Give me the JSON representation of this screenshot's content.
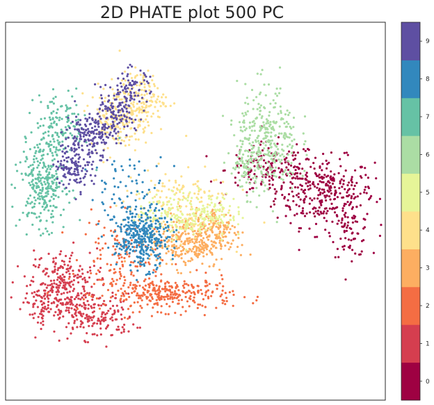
{
  "chart_data": {
    "type": "scatter",
    "title": "2D PHATE plot 500 PC",
    "xlabel": "",
    "ylabel": "",
    "xlim": [
      0,
      100
    ],
    "ylim": [
      0,
      100
    ],
    "grid": false,
    "axis_ticks": false,
    "colorbar": {
      "labels": [
        "0",
        "1",
        "2",
        "3",
        "4",
        "5",
        "6",
        "7",
        "8",
        "9"
      ],
      "colors": [
        "#9e0142",
        "#d53e4f",
        "#f46d43",
        "#fdae61",
        "#fee08b",
        "#e6f598",
        "#abdda4",
        "#66c2a5",
        "#3288bd",
        "#5e4fa2"
      ]
    },
    "series": [
      {
        "label": "0",
        "color": "#9e0142",
        "clusters": [
          {
            "cx": 84,
            "cy": 55,
            "sx": 6.5,
            "sy": 4.5,
            "n": 320
          },
          {
            "cx": 70,
            "cy": 61,
            "sx": 6,
            "sy": 3.5,
            "n": 160
          },
          {
            "cx": 91,
            "cy": 44,
            "sx": 2.5,
            "sy": 3,
            "n": 60
          }
        ]
      },
      {
        "label": "1",
        "color": "#d53e4f",
        "clusters": [
          {
            "cx": 15,
            "cy": 30,
            "sx": 4.5,
            "sy": 5,
            "n": 260
          },
          {
            "cx": 24,
            "cy": 22,
            "sx": 5,
            "sy": 3,
            "n": 160
          },
          {
            "cx": 9,
            "cy": 26,
            "sx": 2.5,
            "sy": 3,
            "n": 60
          }
        ]
      },
      {
        "label": "2",
        "color": "#f46d43",
        "clusters": [
          {
            "cx": 43,
            "cy": 28,
            "sx": 8.5,
            "sy": 2.2,
            "n": 300
          },
          {
            "cx": 30,
            "cy": 38,
            "sx": 5,
            "sy": 5,
            "n": 120
          }
        ]
      },
      {
        "label": "3",
        "color": "#fdae61",
        "clusters": [
          {
            "cx": 48,
            "cy": 42,
            "sx": 5,
            "sy": 3.5,
            "n": 300
          },
          {
            "cx": 56,
            "cy": 45,
            "sx": 3,
            "sy": 3,
            "n": 100
          }
        ]
      },
      {
        "label": "4",
        "color": "#fee08b",
        "clusters": [
          {
            "cx": 30,
            "cy": 75,
            "sx": 4,
            "sy": 4,
            "n": 200
          },
          {
            "cx": 36,
            "cy": 80,
            "sx": 3,
            "sy": 3.5,
            "n": 120
          },
          {
            "cx": 45,
            "cy": 52,
            "sx": 7,
            "sy": 5,
            "n": 150
          }
        ]
      },
      {
        "label": "5",
        "color": "#e6f598",
        "clusters": [
          {
            "cx": 47,
            "cy": 49,
            "sx": 6,
            "sy": 3,
            "n": 180
          },
          {
            "cx": 55,
            "cy": 50,
            "sx": 3,
            "sy": 2.5,
            "n": 60
          }
        ]
      },
      {
        "label": "6",
        "color": "#abdda4",
        "clusters": [
          {
            "cx": 69,
            "cy": 69,
            "sx": 4,
            "sy": 7,
            "n": 300
          },
          {
            "cx": 64,
            "cy": 62,
            "sx": 3,
            "sy": 4,
            "n": 80
          }
        ]
      },
      {
        "label": "7",
        "color": "#66c2a5",
        "clusters": [
          {
            "cx": 10,
            "cy": 58,
            "sx": 3,
            "sy": 6,
            "n": 300
          },
          {
            "cx": 15,
            "cy": 73,
            "sx": 3.5,
            "sy": 4,
            "n": 120
          }
        ]
      },
      {
        "label": "8",
        "color": "#3288bd",
        "clusters": [
          {
            "cx": 36,
            "cy": 43,
            "sx": 3.5,
            "sy": 4,
            "n": 350
          },
          {
            "cx": 32,
            "cy": 55,
            "sx": 5,
            "sy": 5,
            "n": 70
          }
        ]
      },
      {
        "label": "9",
        "color": "#5e4fa2",
        "clusters": [
          {
            "cx": 18,
            "cy": 62,
            "sx": 2.5,
            "sy": 3,
            "n": 120
          },
          {
            "cx": 22,
            "cy": 70,
            "sx": 3,
            "sy": 3,
            "n": 160
          },
          {
            "cx": 28,
            "cy": 75,
            "sx": 3,
            "sy": 3,
            "n": 120
          },
          {
            "cx": 33,
            "cy": 82,
            "sx": 2.5,
            "sy": 3,
            "n": 80
          }
        ]
      }
    ]
  }
}
